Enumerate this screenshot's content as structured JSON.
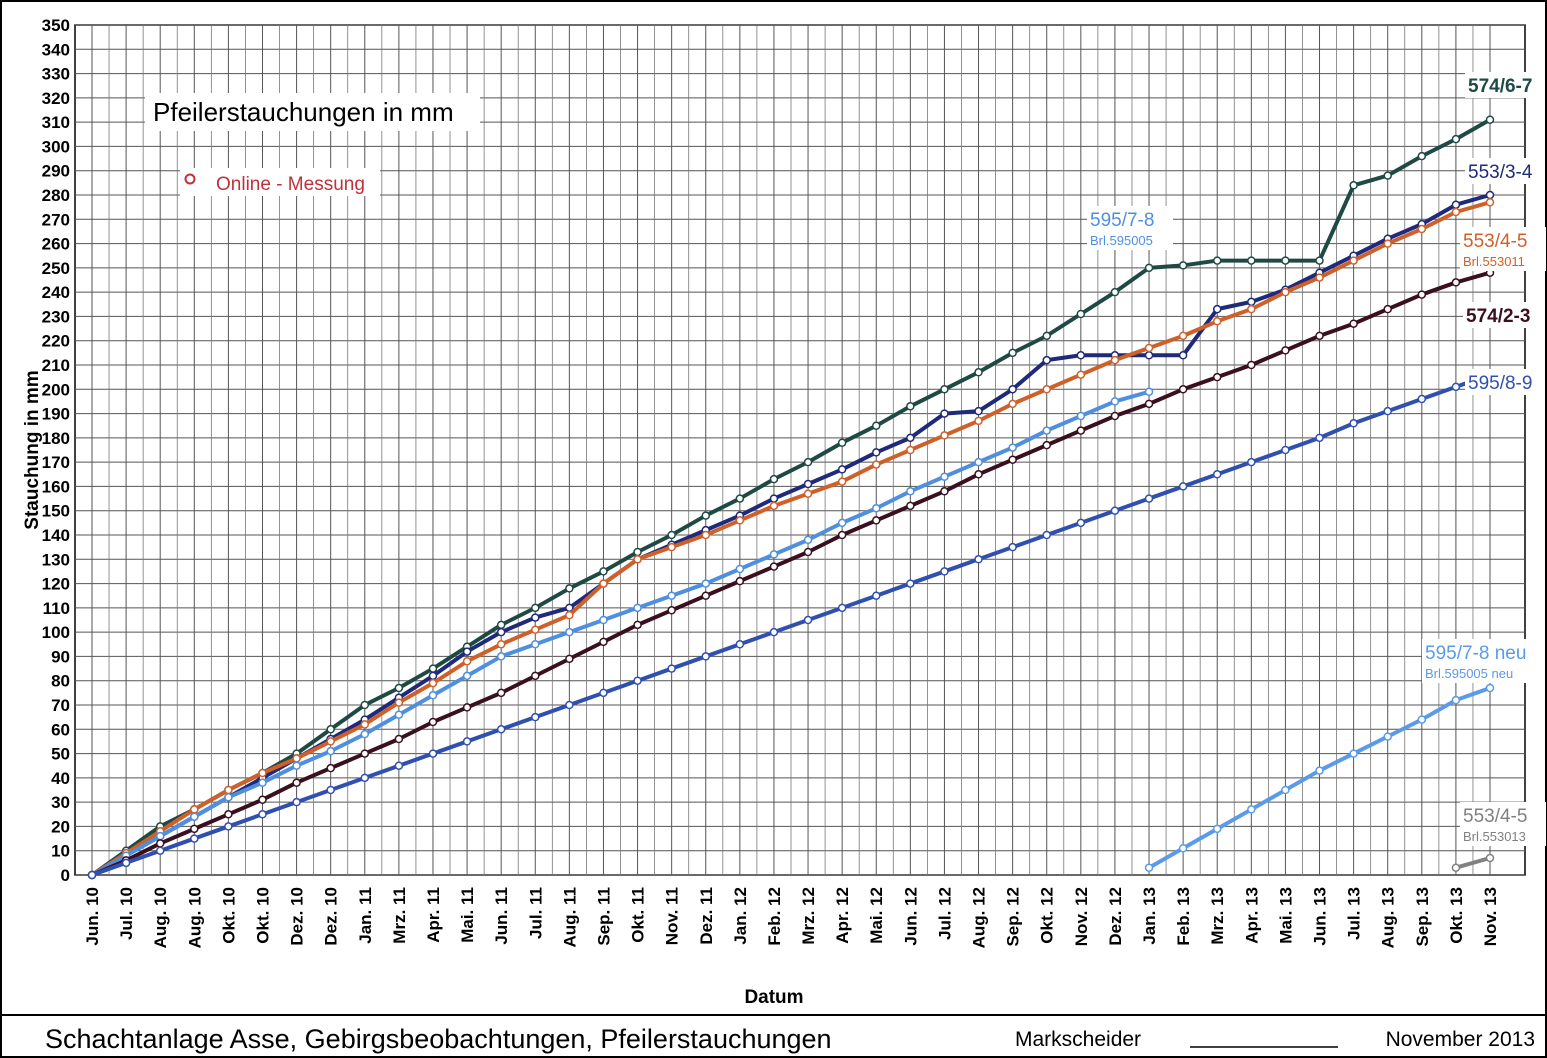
{
  "chart_data": {
    "type": "line",
    "title": "Pfeilerstauchungen in mm",
    "y_label": "Stauchung in mm",
    "x_label": "Datum",
    "legend_marker_label": "Online - Messung",
    "legend_marker_color": "#c0303a",
    "grid": true,
    "footer": {
      "left": "Schachtanlage Asse, Gebirgsbeobachtungen, Pfeilerstauchungen",
      "middle": "Markscheider",
      "right": "November 2013"
    },
    "categories": [
      "Jun. 10",
      "Jul. 10",
      "Aug. 10",
      "Aug. 10",
      "Okt. 10",
      "Okt. 10",
      "Dez. 10",
      "Dez. 10",
      "Jan. 11",
      "Mrz. 11",
      "Apr. 11",
      "Mai. 11",
      "Jun. 11",
      "Jul. 11",
      "Aug. 11",
      "Sep. 11",
      "Okt. 11",
      "Nov. 11",
      "Dez. 11",
      "Jan. 12",
      "Feb. 12",
      "Mrz. 12",
      "Apr. 12",
      "Mai. 12",
      "Jun. 12",
      "Jul. 12",
      "Aug. 12",
      "Sep. 12",
      "Okt. 12",
      "Nov. 12",
      "Dez. 12",
      "Jan. 13",
      "Feb. 13",
      "Mrz. 13",
      "Apr. 13",
      "Mai. 13",
      "Jun. 13",
      "Jul. 13",
      "Aug. 13",
      "Sep. 13",
      "Okt. 13",
      "Nov. 13"
    ],
    "ylim": [
      0,
      350
    ],
    "yticks": [
      0,
      10,
      20,
      30,
      40,
      50,
      60,
      70,
      80,
      90,
      100,
      110,
      120,
      130,
      140,
      150,
      160,
      170,
      180,
      190,
      200,
      210,
      220,
      230,
      240,
      250,
      260,
      270,
      280,
      290,
      300,
      310,
      320,
      330,
      340,
      350
    ],
    "series": [
      {
        "name": "574/6-7",
        "color": "#1f4a44",
        "values": [
          0,
          10,
          20,
          27,
          35,
          42,
          50,
          60,
          70,
          77,
          85,
          94,
          103,
          110,
          118,
          125,
          133,
          140,
          148,
          155,
          163,
          170,
          178,
          185,
          193,
          200,
          207,
          215,
          222,
          231,
          240,
          250,
          251,
          253,
          253,
          253,
          253,
          284,
          288,
          296,
          303,
          311
        ]
      },
      {
        "name": "553/3-4",
        "color": "#1f2a7a",
        "values": [
          0,
          8,
          16,
          24,
          32,
          40,
          48,
          56,
          64,
          73,
          82,
          92,
          100,
          106,
          110,
          120,
          130,
          136,
          142,
          148,
          155,
          161,
          167,
          174,
          180,
          190,
          191,
          200,
          212,
          214,
          214,
          214,
          214,
          233,
          236,
          241,
          248,
          255,
          262,
          268,
          276,
          280
        ]
      },
      {
        "name": "553/4-5",
        "sublabel": "Brl.553011",
        "color": "#d0602a",
        "values": [
          0,
          9,
          18,
          27,
          35,
          42,
          48,
          55,
          62,
          71,
          79,
          88,
          95,
          101,
          107,
          120,
          130,
          135,
          140,
          146,
          152,
          157,
          162,
          169,
          175,
          181,
          187,
          194,
          200,
          206,
          212,
          217,
          222,
          228,
          233,
          240,
          246,
          253,
          260,
          266,
          273,
          277
        ]
      },
      {
        "name": "595/7-8",
        "sublabel": "Brl.595005",
        "color": "#4f8fe0",
        "values": [
          0,
          8,
          16,
          24,
          32,
          38,
          45,
          51,
          58,
          66,
          74,
          82,
          90,
          95,
          100,
          105,
          110,
          115,
          120,
          126,
          132,
          138,
          145,
          151,
          158,
          164,
          170,
          176,
          183,
          189,
          195,
          199,
          null,
          null,
          null,
          null,
          null,
          null,
          null,
          null,
          null,
          null
        ]
      },
      {
        "name": "574/2-3",
        "color": "#3a1020",
        "values": [
          0,
          6,
          13,
          19,
          25,
          31,
          38,
          44,
          50,
          56,
          63,
          69,
          75,
          82,
          89,
          96,
          103,
          109,
          115,
          121,
          127,
          133,
          140,
          146,
          152,
          158,
          165,
          171,
          177,
          183,
          189,
          194,
          200,
          205,
          210,
          216,
          222,
          227,
          233,
          239,
          244,
          248
        ]
      },
      {
        "name": "595/8-9",
        "color": "#3050b0",
        "values": [
          0,
          5,
          10,
          15,
          20,
          25,
          30,
          35,
          40,
          45,
          50,
          55,
          60,
          65,
          70,
          75,
          80,
          85,
          90,
          95,
          100,
          105,
          110,
          115,
          120,
          125,
          130,
          135,
          140,
          145,
          150,
          155,
          160,
          165,
          170,
          175,
          180,
          186,
          191,
          196,
          201,
          206
        ]
      },
      {
        "name": "595/7-8 neu",
        "sublabel": "Brl.595005 neu",
        "color": "#5a9ae8",
        "values": [
          null,
          null,
          null,
          null,
          null,
          null,
          null,
          null,
          null,
          null,
          null,
          null,
          null,
          null,
          null,
          null,
          null,
          null,
          null,
          null,
          null,
          null,
          null,
          null,
          null,
          null,
          null,
          null,
          null,
          null,
          null,
          3,
          11,
          19,
          27,
          35,
          43,
          50,
          57,
          64,
          72,
          77
        ]
      },
      {
        "name": "553/4-5",
        "sublabel": "Brl.553013",
        "color": "#808080",
        "values": [
          null,
          null,
          null,
          null,
          null,
          null,
          null,
          null,
          null,
          null,
          null,
          null,
          null,
          null,
          null,
          null,
          null,
          null,
          null,
          null,
          null,
          null,
          null,
          null,
          null,
          null,
          null,
          null,
          null,
          null,
          null,
          null,
          null,
          null,
          null,
          null,
          null,
          null,
          null,
          null,
          3,
          7
        ]
      }
    ]
  }
}
